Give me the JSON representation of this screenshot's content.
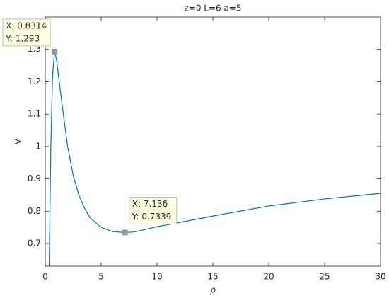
{
  "chart_data": {
    "type": "line",
    "title": "z=0  L=6  a=5",
    "x_label": "ρ",
    "y_label": "V",
    "x": [
      0.35,
      0.5,
      0.65,
      0.8314,
      1,
      1.5,
      2,
      2.5,
      3,
      3.5,
      4,
      5,
      6,
      7.136,
      8,
      10,
      12,
      15,
      20,
      25,
      30
    ],
    "series": [
      {
        "color": "#0072bd",
        "values": [
          0.63,
          1.0,
          1.22,
          1.293,
          1.27,
          1.13,
          1.0,
          0.91,
          0.85,
          0.81,
          0.78,
          0.75,
          0.737,
          0.7339,
          0.736,
          0.752,
          0.765,
          0.785,
          0.816,
          0.838,
          0.855
        ]
      }
    ],
    "xlim": [
      0,
      30
    ],
    "ylim": [
      0.63,
      1.4
    ],
    "xticks": [
      0,
      5,
      10,
      15,
      20,
      25,
      30
    ],
    "yticks": [
      0.7,
      0.8,
      0.9,
      1,
      1.1,
      1.2,
      1.3
    ],
    "datatips": [
      {
        "x": 0.8314,
        "y": 1.293,
        "labels": [
          "X: 0.8314",
          "Y: 1.293"
        ]
      },
      {
        "x": 7.136,
        "y": 0.7339,
        "labels": [
          "X: 7.136",
          "Y: 0.7339"
        ]
      }
    ]
  }
}
